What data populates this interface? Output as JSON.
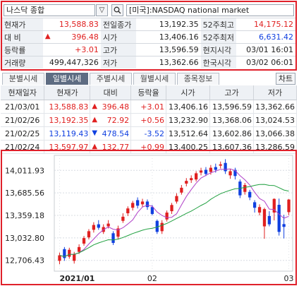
{
  "header": {
    "index_name": "나스닥 종합",
    "search_icon": "search-icon",
    "dropdown_icon": "chevron-down-icon",
    "market_label": "[미국]:NASDAQ national market"
  },
  "quote": {
    "rows": [
      {
        "l1": "현재가",
        "v1": "13,588.83",
        "l2": "전일종가",
        "v2": "13,192.35",
        "l3": "52주최고",
        "v3": "14,175.12"
      },
      {
        "l1": "대 비",
        "v1": "396.48",
        "l2": "시가",
        "v2": "13,406.16",
        "l3": "52주최저",
        "v3": "6,631.42"
      },
      {
        "l1": "등락률",
        "v1": "+3.01",
        "l2": "고가",
        "v2": "13,596.59",
        "l3": "현지시각",
        "v3": "03/01 16:01"
      },
      {
        "l1": "거래량",
        "v1": "499,447,326",
        "l2": "저가",
        "v2": "13,362.66",
        "l3": "한국시각",
        "v3": "03/02 06:01"
      }
    ],
    "change_arrow": "▲"
  },
  "tabs": {
    "items": [
      "분별시세",
      "일별시세",
      "주별시세",
      "월별시세",
      "종목정보"
    ],
    "active_index": 1,
    "chart_button": "차트"
  },
  "history": {
    "headers": [
      "현재일자",
      "현재가",
      "대비",
      "등락율",
      "시가",
      "고가",
      "저가"
    ],
    "rows": [
      {
        "date": "21/03/01",
        "close": "13,588.83",
        "dir": "▲",
        "change": "396.48",
        "pct": "+3.01",
        "open": "13,406.16",
        "high": "13,596.59",
        "low": "13,362.66"
      },
      {
        "date": "21/02/26",
        "close": "13,192.35",
        "dir": "▲",
        "change": "72.92",
        "pct": "+0.56",
        "open": "13,232.90",
        "high": "13,368.06",
        "low": "13,024.53"
      },
      {
        "date": "21/02/25",
        "close": "13,119.43",
        "dir": "▼",
        "change": "478.54",
        "pct": "-3.52",
        "open": "13,512.64",
        "high": "13,602.86",
        "low": "13,066.38"
      },
      {
        "date": "21/02/24",
        "close": "13,597.97",
        "dir": "▲",
        "change": "132.77",
        "pct": "+0.99",
        "open": "13,400.25",
        "high": "13,607.36",
        "low": "13,286.59"
      }
    ]
  },
  "colors": {
    "up": "#e02020",
    "down": "#1040e0",
    "ma_short": "#b040c8",
    "ma_long": "#20a040",
    "frame": "#e0202a"
  },
  "chart_data": {
    "type": "candlestick",
    "y_ticks": [
      "14,011.93",
      "13,685.56",
      "13,359.18",
      "13,032.80",
      "12,706.43"
    ],
    "y_tick_values": [
      14011.93,
      13685.56,
      13359.18,
      13032.8,
      12706.43
    ],
    "x_labels": [
      "2021/01",
      "02",
      "03"
    ],
    "ylim": [
      12550,
      14230
    ],
    "grid": true,
    "candles": [
      {
        "o": 12700,
        "c": 12780,
        "h": 12820,
        "l": 12650
      },
      {
        "o": 12870,
        "c": 12740,
        "h": 12900,
        "l": 12700
      },
      {
        "o": 12760,
        "c": 12860,
        "h": 12890,
        "l": 12730
      },
      {
        "o": 12700,
        "c": 12800,
        "h": 12830,
        "l": 12660
      },
      {
        "o": 12830,
        "c": 12900,
        "h": 12940,
        "l": 12800
      },
      {
        "o": 12950,
        "c": 13030,
        "h": 13060,
        "l": 12920
      },
      {
        "o": 13040,
        "c": 13130,
        "h": 13160,
        "l": 13010
      },
      {
        "o": 13150,
        "c": 13220,
        "h": 13260,
        "l": 13110
      },
      {
        "o": 13230,
        "c": 13180,
        "h": 13290,
        "l": 13150
      },
      {
        "o": 13120,
        "c": 13190,
        "h": 13230,
        "l": 13090
      },
      {
        "o": 13200,
        "c": 13240,
        "h": 13290,
        "l": 13170
      },
      {
        "o": 13100,
        "c": 12960,
        "h": 13130,
        "l": 12930
      },
      {
        "o": 13050,
        "c": 13170,
        "h": 13210,
        "l": 13010
      },
      {
        "o": 13280,
        "c": 13340,
        "h": 13390,
        "l": 13250
      },
      {
        "o": 13390,
        "c": 13460,
        "h": 13490,
        "l": 13350
      },
      {
        "o": 13470,
        "c": 13540,
        "h": 13570,
        "l": 13430
      },
      {
        "o": 13580,
        "c": 13500,
        "h": 13620,
        "l": 13460
      },
      {
        "o": 13520,
        "c": 13560,
        "h": 13600,
        "l": 13480
      },
      {
        "o": 13560,
        "c": 13480,
        "h": 13590,
        "l": 13440
      },
      {
        "o": 13480,
        "c": 13380,
        "h": 13510,
        "l": 13360
      },
      {
        "o": 13280,
        "c": 13120,
        "h": 13300,
        "l": 13090
      },
      {
        "o": 13130,
        "c": 13250,
        "h": 13290,
        "l": 13090
      },
      {
        "o": 13300,
        "c": 13400,
        "h": 13430,
        "l": 13270
      },
      {
        "o": 13420,
        "c": 13510,
        "h": 13540,
        "l": 13380
      },
      {
        "o": 13560,
        "c": 13640,
        "h": 13680,
        "l": 13530
      },
      {
        "o": 13690,
        "c": 13760,
        "h": 13800,
        "l": 13660
      },
      {
        "o": 13820,
        "c": 13860,
        "h": 13900,
        "l": 13780
      },
      {
        "o": 13870,
        "c": 13900,
        "h": 13940,
        "l": 13830
      },
      {
        "o": 13880,
        "c": 13970,
        "h": 14000,
        "l": 13850
      },
      {
        "o": 13980,
        "c": 14010,
        "h": 14050,
        "l": 13940
      },
      {
        "o": 14020,
        "c": 13960,
        "h": 14060,
        "l": 13930
      },
      {
        "o": 13990,
        "c": 14050,
        "h": 14090,
        "l": 13950
      },
      {
        "o": 14060,
        "c": 14020,
        "h": 14110,
        "l": 13980
      },
      {
        "o": 14080,
        "c": 14100,
        "h": 14140,
        "l": 14040
      },
      {
        "o": 14120,
        "c": 14000,
        "h": 14175,
        "l": 13960
      },
      {
        "o": 13940,
        "c": 14000,
        "h": 14030,
        "l": 13890
      },
      {
        "o": 14020,
        "c": 13930,
        "h": 14050,
        "l": 13880
      },
      {
        "o": 13850,
        "c": 13650,
        "h": 13880,
        "l": 13610
      },
      {
        "o": 13700,
        "c": 13800,
        "h": 13830,
        "l": 13660
      },
      {
        "o": 13700,
        "c": 13620,
        "h": 13730,
        "l": 13580
      },
      {
        "o": 13550,
        "c": 13470,
        "h": 13580,
        "l": 13400
      },
      {
        "o": 13400,
        "c": 13480,
        "h": 13520,
        "l": 13360
      },
      {
        "o": 13200,
        "c": 13450,
        "h": 13470,
        "l": 13020
      },
      {
        "o": 13350,
        "c": 13230,
        "h": 13420,
        "l": 13200
      },
      {
        "o": 13400.25,
        "c": 13597.97,
        "h": 13607.36,
        "l": 13286.59
      },
      {
        "o": 13512.64,
        "c": 13119.43,
        "h": 13602.86,
        "l": 13066.38
      },
      {
        "o": 13232.9,
        "c": 13192.35,
        "h": 13368.06,
        "l": 13024.53
      },
      {
        "o": 13406.16,
        "c": 13588.83,
        "h": 13596.59,
        "l": 13362.66
      }
    ]
  }
}
